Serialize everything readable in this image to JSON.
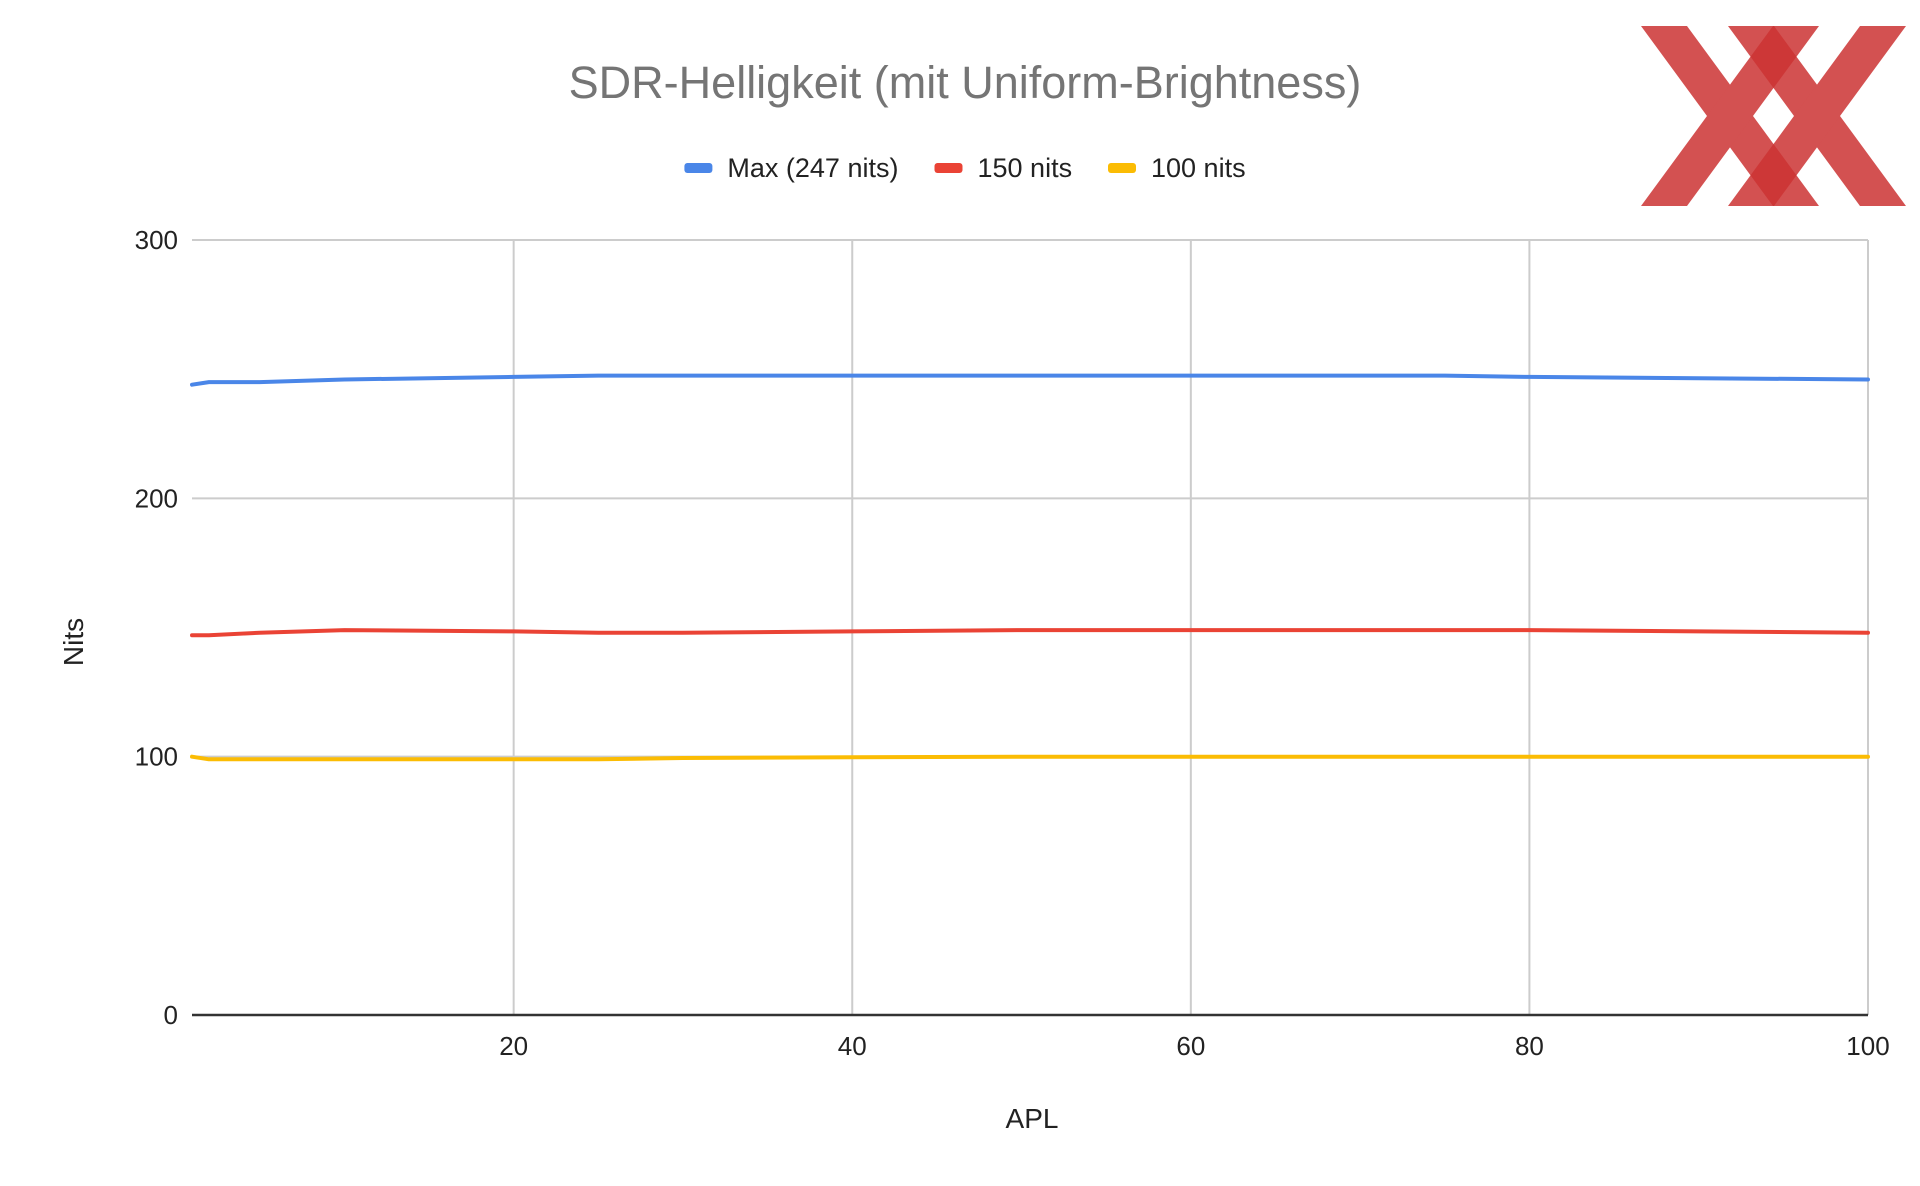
{
  "chart_data": {
    "type": "line",
    "title": "SDR-Helligkeit (mit Uniform-Brightness)",
    "xlabel": "APL",
    "ylabel": "Nits",
    "xlim": [
      1,
      100
    ],
    "ylim": [
      0,
      300
    ],
    "x_ticks": [
      "20",
      "40",
      "60",
      "80",
      "100"
    ],
    "y_ticks": [
      "0",
      "100",
      "200",
      "300"
    ],
    "grid": true,
    "legend_position": "top",
    "series": [
      {
        "name": "Max (247 nits)",
        "color": "#4a86e8",
        "x": [
          1,
          2,
          5,
          10,
          20,
          25,
          30,
          40,
          50,
          60,
          70,
          75,
          80,
          90,
          100
        ],
        "y": [
          244,
          245,
          245,
          246,
          247,
          247.5,
          247.5,
          247.5,
          247.5,
          247.5,
          247.5,
          247.5,
          247,
          246.5,
          246
        ]
      },
      {
        "name": "150 nits",
        "color": "#ea4335",
        "x": [
          1,
          2,
          5,
          10,
          20,
          25,
          30,
          40,
          50,
          60,
          70,
          75,
          80,
          90,
          100
        ],
        "y": [
          147,
          147,
          148,
          149,
          148.5,
          148,
          148,
          148.5,
          149,
          149,
          149,
          149,
          149,
          148.5,
          148
        ]
      },
      {
        "name": "100 nits",
        "color": "#fbbc04",
        "x": [
          1,
          2,
          5,
          10,
          20,
          25,
          30,
          40,
          50,
          60,
          70,
          75,
          80,
          90,
          100
        ],
        "y": [
          100,
          99,
          99,
          99,
          99,
          99,
          99.5,
          99.8,
          100,
          100,
          100,
          100,
          100,
          100,
          100
        ]
      }
    ]
  },
  "logo": {
    "color": "#cc3333"
  }
}
